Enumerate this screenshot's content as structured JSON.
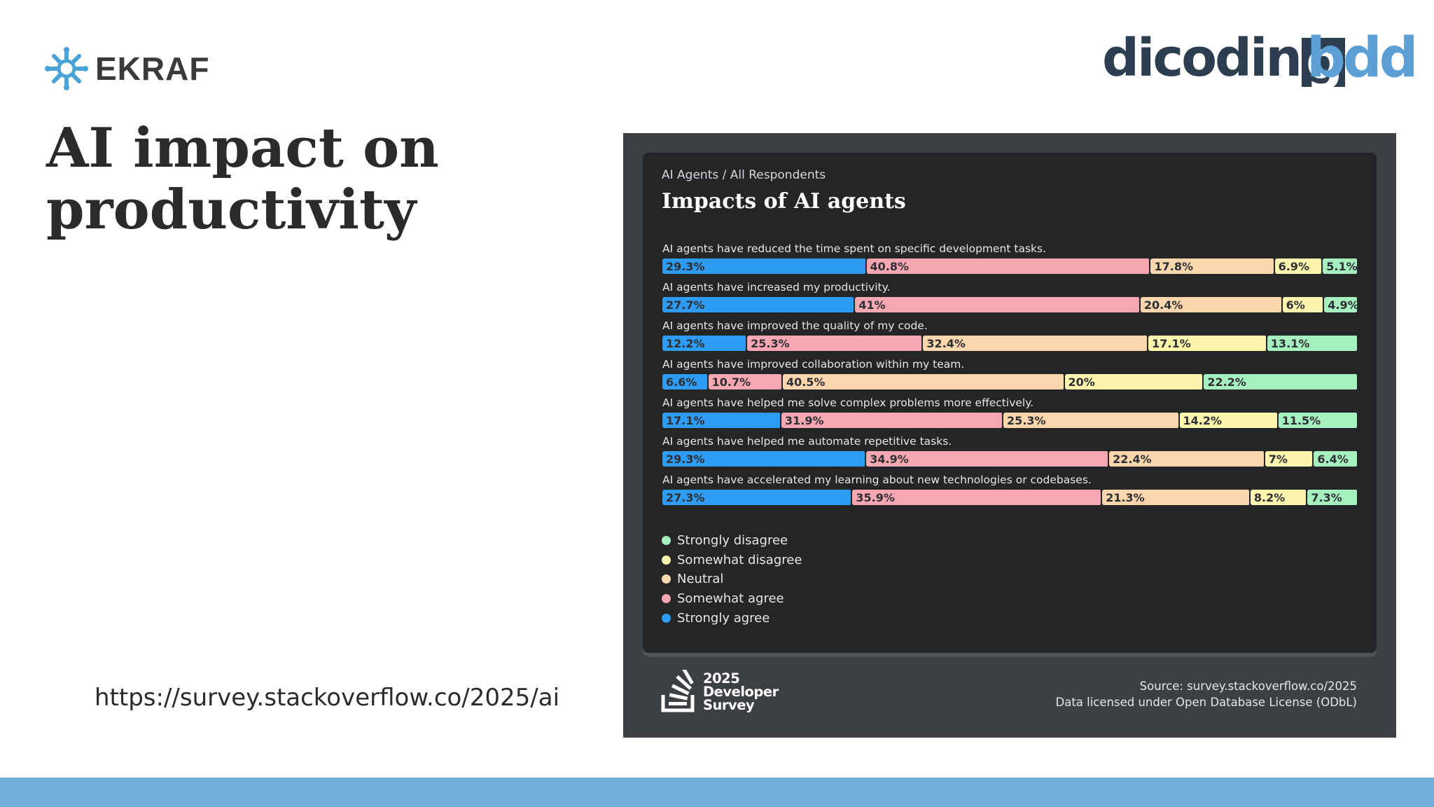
{
  "header": {
    "ekraf_label": "EKRAF",
    "title": "AI impact on productivity",
    "dicoding_logo": "dicoding",
    "bdd_logo": "bdd"
  },
  "source_link": "https://survey.stackoverflow.co/2025/ai",
  "chart_frame": {
    "breadcrumb": "AI Agents / All Respondents",
    "footer": {
      "logo_year": "2025",
      "logo_line1": "Developer",
      "logo_line2": "Survey",
      "source_line": "Source: survey.stackoverflow.co/2025",
      "license_line": "Data licensed under Open Database License (ODbL)"
    }
  },
  "chart_data": {
    "type": "bar",
    "orientation": "horizontal-stacked-100",
    "title": "Impacts of AI agents",
    "categories": [
      "AI agents have reduced the time spent on specific development tasks.",
      "AI agents have increased my productivity.",
      "AI agents have improved the quality of my code.",
      "AI agents have improved collaboration within my team.",
      "AI agents have helped me solve complex problems more effectively.",
      "AI agents have helped me automate repetitive tasks.",
      "AI agents have accelerated my learning about new technologies or codebases."
    ],
    "series": [
      {
        "name": "Strongly agree",
        "color": "#2e9cf4",
        "values": [
          29.3,
          27.7,
          12.2,
          6.6,
          17.1,
          29.3,
          27.3
        ]
      },
      {
        "name": "Somewhat agree",
        "color": "#f6a7b2",
        "values": [
          40.8,
          41,
          25.3,
          10.7,
          31.9,
          34.9,
          35.9
        ]
      },
      {
        "name": "Neutral",
        "color": "#fcd6ad",
        "values": [
          17.8,
          20.4,
          32.4,
          40.5,
          25.3,
          22.4,
          21.3
        ]
      },
      {
        "name": "Somewhat disagree",
        "color": "#fdf4ad",
        "values": [
          6.9,
          6,
          17.1,
          20,
          14.2,
          7,
          8.2
        ]
      },
      {
        "name": "Strongly disagree",
        "color": "#a6efbf",
        "values": [
          5.1,
          4.9,
          13.1,
          22.2,
          11.5,
          6.4,
          7.3
        ]
      }
    ],
    "legend_order": [
      "Strongly disagree",
      "Somewhat disagree",
      "Neutral",
      "Somewhat agree",
      "Strongly agree"
    ],
    "value_suffix": "%",
    "legend_position": "bottom-left"
  }
}
